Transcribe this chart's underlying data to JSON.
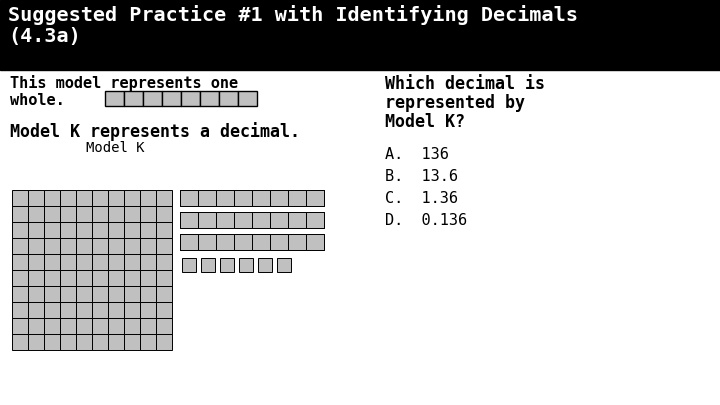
{
  "title_line1": "Suggested Practice #1 with Identifying Decimals",
  "title_line2": "(4.3a)",
  "title_bg": "#000000",
  "title_fg": "#ffffff",
  "body_bg": "#ffffff",
  "grid_color": "#c0c0c0",
  "grid_edge": "#000000",
  "strip_color": "#c0c0c0",
  "strip_edge": "#000000",
  "whole_bar_cells": 8,
  "grid_rows": 10,
  "grid_cols": 10,
  "strip_rows_count": 3,
  "strip_cells": 8,
  "small_cells": 6,
  "answers": [
    "A.  136",
    "B.  13.6",
    "C.  1.36",
    "D.  0.136"
  ]
}
